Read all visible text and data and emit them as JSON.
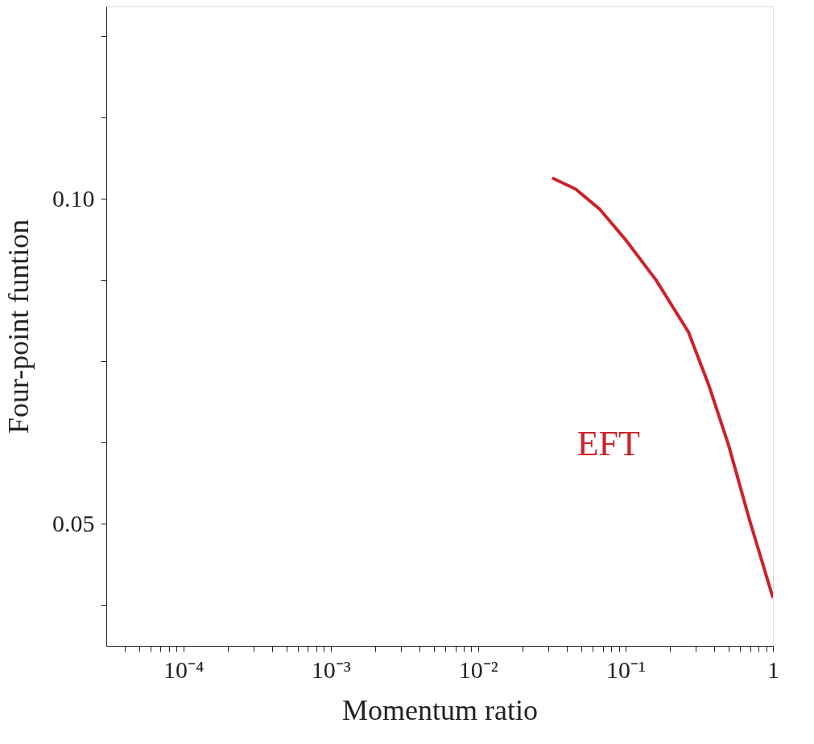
{
  "chart_data": {
    "type": "line",
    "xlabel": "Momentum ratio",
    "ylabel": "Four-point funtion",
    "log": "x",
    "xlim": [
      3e-05,
      1
    ],
    "ylim": [
      0.0312,
      0.1296
    ],
    "xticks": [
      {
        "value": 0.0001,
        "label": "10⁻⁴"
      },
      {
        "value": 0.001,
        "label": "10⁻³"
      },
      {
        "value": 0.01,
        "label": "10⁻²"
      },
      {
        "value": 0.1,
        "label": "10⁻¹"
      },
      1,
      {
        "value": 4e-05,
        "label": null
      },
      {
        "value": 5e-05,
        "label": null
      },
      {
        "value": 6e-05,
        "label": null
      },
      {
        "value": 7e-05,
        "label": null
      },
      {
        "value": 8e-05,
        "label": null
      },
      {
        "value": 9e-05,
        "label": null
      },
      {
        "value": 0.0002,
        "label": null
      },
      {
        "value": 0.0003,
        "label": null
      },
      {
        "value": 0.0004,
        "label": null
      },
      {
        "value": 0.0005,
        "label": null
      },
      {
        "value": 0.0006,
        "label": null
      },
      {
        "value": 0.0007,
        "label": null
      },
      {
        "value": 0.0008,
        "label": null
      },
      {
        "value": 0.0009,
        "label": null
      },
      {
        "value": 0.002,
        "label": null
      },
      {
        "value": 0.003,
        "label": null
      },
      {
        "value": 0.004,
        "label": null
      },
      {
        "value": 0.005,
        "label": null
      },
      {
        "value": 0.006,
        "label": null
      },
      {
        "value": 0.007,
        "label": null
      },
      {
        "value": 0.008,
        "label": null
      },
      {
        "value": 0.009,
        "label": null
      },
      {
        "value": 0.02,
        "label": null
      },
      {
        "value": 0.03,
        "label": null
      },
      {
        "value": 0.04,
        "label": null
      },
      {
        "value": 0.05,
        "label": null
      },
      {
        "value": 0.06,
        "label": null
      },
      {
        "value": 0.07,
        "label": null
      },
      {
        "value": 0.08,
        "label": null
      },
      {
        "value": 0.09,
        "label": null
      },
      {
        "value": 0.2,
        "label": null
      },
      {
        "value": 0.3,
        "label": null
      },
      {
        "value": 0.4,
        "label": null
      },
      {
        "value": 0.5,
        "label": null
      },
      {
        "value": 0.6,
        "label": null
      },
      {
        "value": 0.7,
        "label": null
      },
      {
        "value": 0.8,
        "label": null
      },
      {
        "value": 0.9,
        "label": null
      }
    ],
    "yticks": [
      0.05,
      {
        "value": 0.1,
        "label": "0.10"
      },
      {
        "value": 0.0375,
        "label": null
      },
      {
        "value": 0.0625,
        "label": null
      },
      {
        "value": 0.075,
        "label": null
      },
      {
        "value": 0.0875,
        "label": null
      },
      {
        "value": 0.1125,
        "label": null
      },
      {
        "value": 0.125,
        "label": null
      }
    ],
    "grid": false,
    "legend": false,
    "marker": "none",
    "line_style": "solid",
    "series": [
      {
        "name": "EFT",
        "color": "#cc2229",
        "x": [
          0.0318,
          0.0458,
          0.0668,
          0.1,
          0.161,
          0.267,
          0.366,
          0.5,
          0.685,
          1
        ],
        "values": [
          0.1032,
          0.1015,
          0.0984,
          0.0937,
          0.0875,
          0.0795,
          0.0714,
          0.0621,
          0.051,
          0.0386
        ]
      }
    ]
  }
}
